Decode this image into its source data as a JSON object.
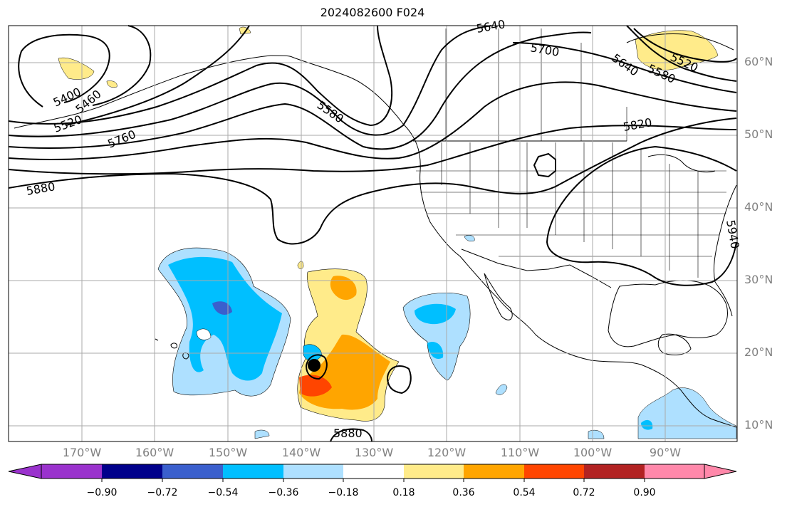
{
  "title": "2024082600 F024",
  "map": {
    "lat_labels": [
      "60°N",
      "50°N",
      "40°N",
      "30°N",
      "20°N",
      "10°N"
    ],
    "lon_labels": [
      "170°W",
      "160°W",
      "150°W",
      "140°W",
      "130°W",
      "120°W",
      "110°W",
      "100°W",
      "90°W"
    ],
    "contour_labels": [
      "5400",
      "5460",
      "5520",
      "5760",
      "5880",
      "5580",
      "5640",
      "5700",
      "5640",
      "5580",
      "5520",
      "5820",
      "5940",
      "5880"
    ],
    "colors": {
      "grid": "#aaaaaa",
      "tick_text": "#808080",
      "pos_018": "#ffeb8a",
      "pos_036": "#ffa500",
      "pos_054": "#ff4500",
      "neg_018": "#aee0ff",
      "neg_036": "#00bfff",
      "neg_054": "#3a5fcd"
    }
  },
  "colorbar": {
    "ticks": [
      "−0.90",
      "−0.72",
      "−0.54",
      "−0.36",
      "−0.18",
      "0.18",
      "0.36",
      "0.54",
      "0.72",
      "0.90"
    ],
    "segments": [
      "#9a32cd",
      "#00008b",
      "#3a5fcd",
      "#00bfff",
      "#aee0ff",
      "#ffffff",
      "#ffeb8a",
      "#ffa500",
      "#ff4500",
      "#b22222",
      "#ff88aa"
    ]
  }
}
